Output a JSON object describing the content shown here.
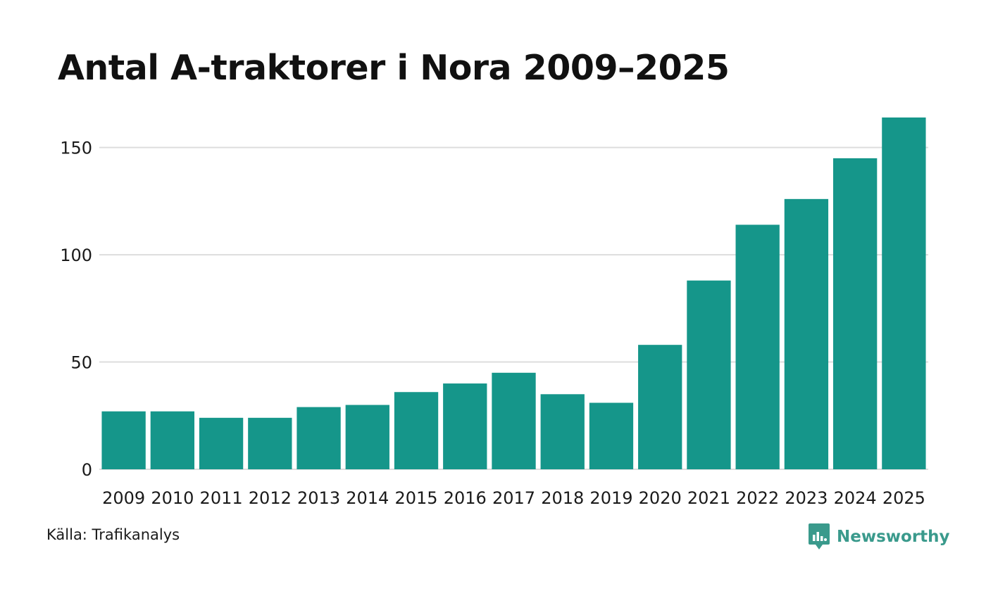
{
  "chart_data": {
    "type": "bar",
    "title": "Antal A-traktorer i Nora 2009–2025",
    "categories": [
      "2009",
      "2010",
      "2011",
      "2012",
      "2013",
      "2014",
      "2015",
      "2016",
      "2017",
      "2018",
      "2019",
      "2020",
      "2021",
      "2022",
      "2023",
      "2024",
      "2025"
    ],
    "values": [
      27,
      27,
      24,
      24,
      29,
      30,
      36,
      40,
      45,
      35,
      31,
      58,
      88,
      114,
      126,
      145,
      164
    ],
    "xlabel": "",
    "ylabel": "",
    "ylim": [
      0,
      164
    ],
    "yticks": [
      0,
      50,
      100,
      150
    ],
    "grid": true,
    "bar_color": "#15968a",
    "grid_color": "#dddddd"
  },
  "footer": {
    "source": "Källa: Trafikanalys",
    "brand": "Newsworthy",
    "brand_icon": "newsworthy-logo-icon",
    "brand_color": "#3a9a8c"
  }
}
